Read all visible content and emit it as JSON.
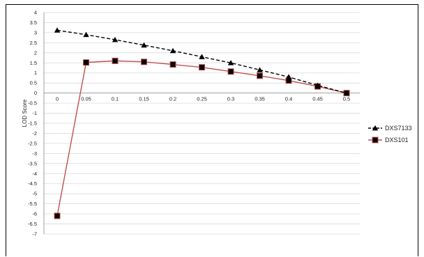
{
  "chart_data": {
    "type": "line",
    "title": "",
    "xlabel": "",
    "ylabel": "LOD Score",
    "x": [
      0,
      0.05,
      0.1,
      0.15,
      0.2,
      0.25,
      0.3,
      0.35,
      0.4,
      0.45,
      0.5
    ],
    "x_tick_labels": [
      "0",
      "0.05",
      "0.1",
      "0.15",
      "0.2",
      "0.25",
      "0.3",
      "0.35",
      "0.4",
      "0.45",
      "0.5"
    ],
    "ylim": [
      -7,
      4
    ],
    "y_ticks": [
      4,
      3.5,
      3,
      2.5,
      2,
      1.5,
      1,
      0.5,
      0,
      -0.5,
      -1,
      -1.5,
      -2,
      -2.5,
      -3,
      -3.5,
      -4,
      -4.5,
      -5,
      -5.5,
      -6,
      -6.5,
      -7
    ],
    "grid": true,
    "legend_position": "right",
    "series": [
      {
        "name": "DXS7133",
        "color": "#000000",
        "line_style": "dashed",
        "marker": "triangle",
        "values": [
          3.12,
          2.9,
          2.65,
          2.38,
          2.1,
          1.8,
          1.5,
          1.15,
          0.8,
          0.38,
          0.0
        ]
      },
      {
        "name": "DXS101",
        "color": "#c0504d",
        "line_style": "solid",
        "marker": "square",
        "values": [
          -6.1,
          1.52,
          1.6,
          1.55,
          1.42,
          1.28,
          1.07,
          0.86,
          0.62,
          0.33,
          0.0
        ]
      }
    ]
  }
}
